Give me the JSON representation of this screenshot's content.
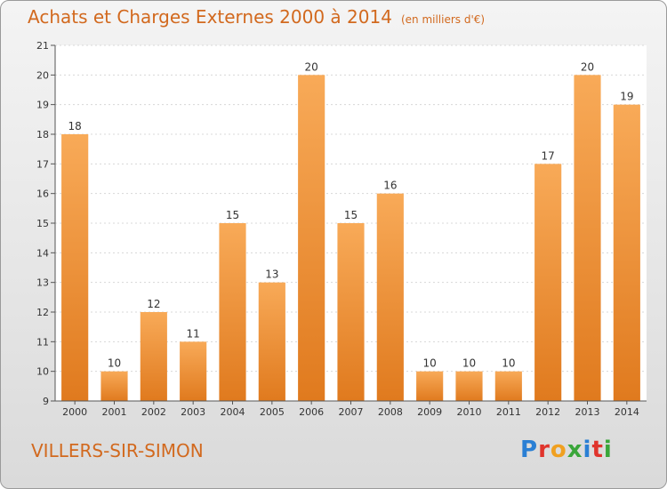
{
  "title": "Achats et Charges Externes 2000 à 2014",
  "subtitle": "(en milliers d'€)",
  "commune": "VILLERS-SIR-SIMON",
  "logo": {
    "letters": [
      "P",
      "r",
      "o",
      "x",
      "i",
      "t",
      "i"
    ]
  },
  "colors": {
    "bar_top": "#f8aa58",
    "bar_bottom": "#e07a1e",
    "title": "#d2691e"
  },
  "chart_data": {
    "type": "bar",
    "title": "Achats et Charges Externes 2000 à 2014",
    "subtitle": "(en milliers d'€)",
    "categories": [
      "2000",
      "2001",
      "2002",
      "2003",
      "2004",
      "2005",
      "2006",
      "2007",
      "2008",
      "2009",
      "2010",
      "2011",
      "2012",
      "2013",
      "2014"
    ],
    "values": [
      18,
      10,
      12,
      11,
      15,
      13,
      20,
      15,
      16,
      10,
      10,
      10,
      17,
      20,
      19
    ],
    "ylim": [
      9,
      21
    ],
    "yticks": [
      9,
      10,
      11,
      12,
      13,
      14,
      15,
      16,
      17,
      18,
      19,
      20,
      21
    ],
    "grid": true
  }
}
